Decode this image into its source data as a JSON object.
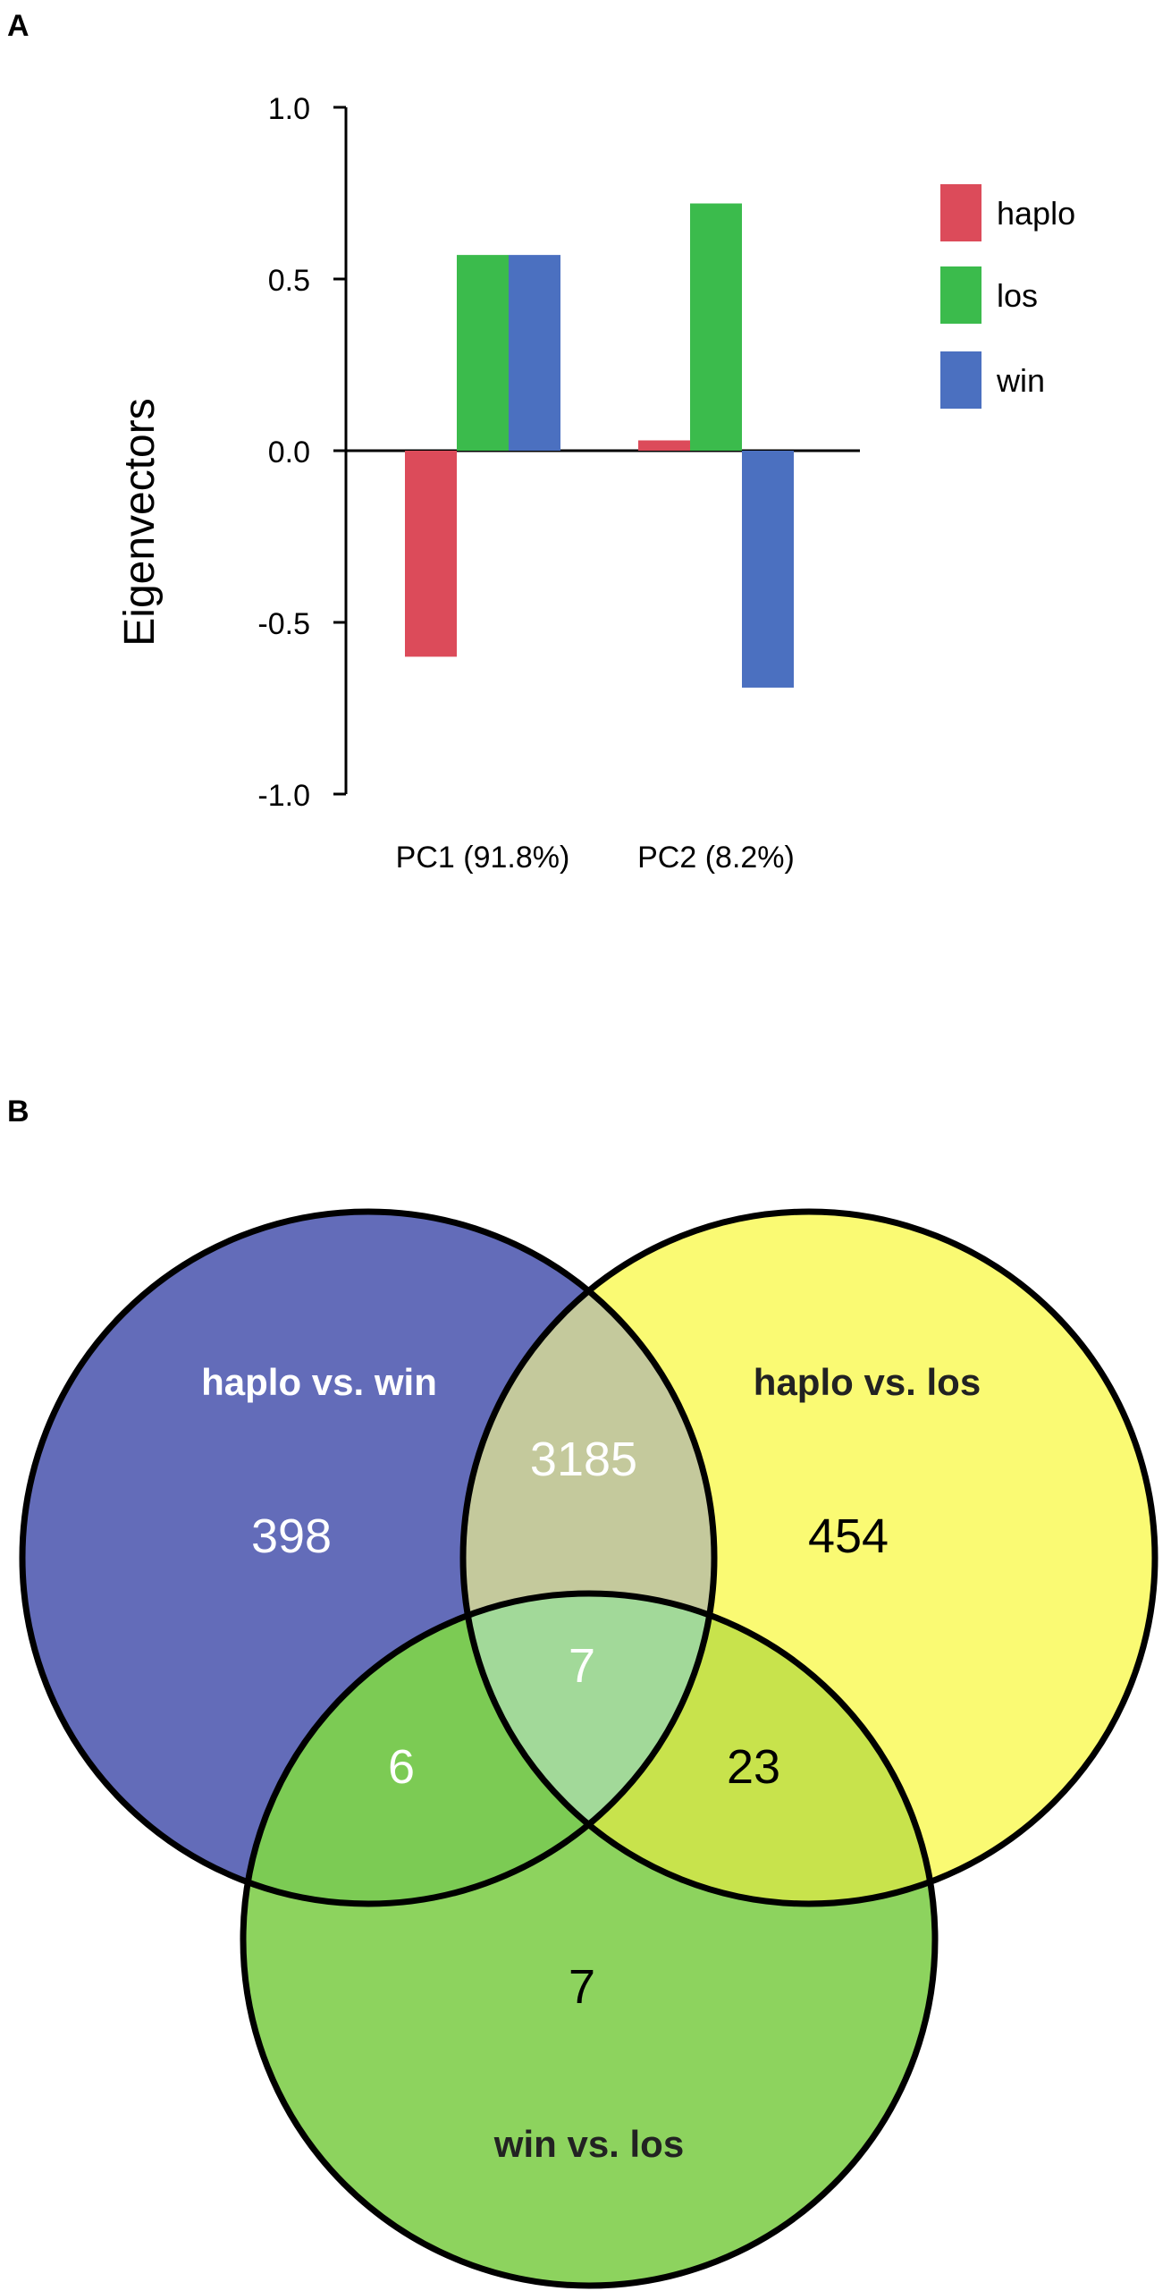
{
  "panels": {
    "a_letter": "A",
    "b_letter": "B"
  },
  "chart_data": [
    {
      "type": "bar",
      "ylabel": "Eigenvectors",
      "xlabel": "",
      "ylim": [
        -1.0,
        1.0
      ],
      "yticks": [
        1.0,
        0.5,
        0.0,
        -0.5,
        -1.0
      ],
      "ytick_labels": [
        "1.0",
        "0.5",
        "0.0",
        "-0.5",
        "-1.0"
      ],
      "categories": [
        "PC1 (91.8%)",
        "PC2 (8.2%)"
      ],
      "series": [
        {
          "name": "haplo",
          "color": "#dc4b5a",
          "values": [
            -0.6,
            0.03
          ]
        },
        {
          "name": "los",
          "color": "#3bbb4c",
          "values": [
            0.57,
            0.72
          ]
        },
        {
          "name": "win",
          "color": "#4b70c0",
          "values": [
            0.57,
            -0.69
          ]
        }
      ],
      "legend_position": "right"
    },
    {
      "type": "venn",
      "sets": [
        {
          "name": "haplo vs. win",
          "color": "#636cb9",
          "label_color": "#ffffff"
        },
        {
          "name": "haplo vs. los",
          "color": "#fafa73",
          "label_color": "#222222"
        },
        {
          "name": "win vs. los",
          "color": "#8dd35e",
          "label_color": "#222222"
        }
      ],
      "regions": [
        {
          "sets": [
            "haplo vs. win"
          ],
          "count": "398",
          "color": "#ffffff"
        },
        {
          "sets": [
            "haplo vs. los"
          ],
          "count": "454",
          "color": "#000000"
        },
        {
          "sets": [
            "win vs. los"
          ],
          "count": "7",
          "color": "#000000"
        },
        {
          "sets": [
            "haplo vs. win",
            "haplo vs. los"
          ],
          "count": "3185",
          "color": "#ffffff"
        },
        {
          "sets": [
            "haplo vs. win",
            "win vs. los"
          ],
          "count": "6",
          "color": "#ffffff"
        },
        {
          "sets": [
            "haplo vs. los",
            "win vs. los"
          ],
          "count": "23",
          "color": "#000000"
        },
        {
          "sets": [
            "haplo vs. win",
            "haplo vs. los",
            "win vs. los"
          ],
          "count": "7",
          "color": "#ffffff"
        }
      ],
      "region_fills": {
        "ab": "#c4c99c",
        "ac": "#7ccb54",
        "bc": "#c8e34c",
        "abc": "#a2d999"
      }
    }
  ]
}
